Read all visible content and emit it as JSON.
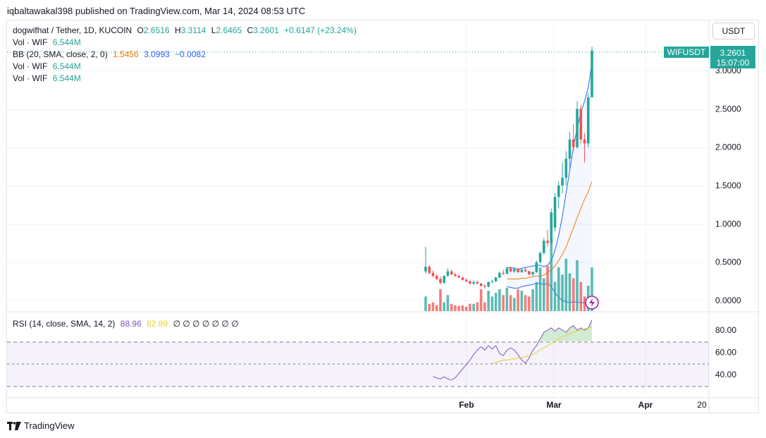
{
  "header": {
    "publisher_line": "iqbaltawakal398 published on TradingView.com, Mar 14, 2024 08:53 UTC"
  },
  "legend": {
    "symbol": "dogwifhat / Tether, 1D, KUCOIN",
    "o_label": "O",
    "o": "2.6516",
    "h_label": "H",
    "h": "3.3114",
    "l_label": "L",
    "l": "2.6465",
    "c_label": "C",
    "c": "3.2601",
    "change": "+0.6147 (+23.24%)",
    "vol1_label": "Vol · WIF",
    "vol1": "6.544M",
    "bb_label": "BB (20, SMA, close, 2, 0)",
    "bb_basis": "1.5456",
    "bb_upper": "3.0993",
    "bb_lower": "−0.0082",
    "vol2_label": "Vol · WIF",
    "vol2": "6.544M",
    "vol3_label": "Vol · WIF",
    "vol3": "6.544M",
    "rsi_label": "RSI (14, close, SMA, 14, 2)",
    "rsi": "88.96",
    "rsi_ma": "82.89",
    "na_values": "∅ ∅ ∅ ∅ ∅ ∅ ∅"
  },
  "currency_button": "USDT",
  "price_tag": {
    "symbol": "WIFUSDT",
    "price": "3.2601",
    "countdown": "15:07:00"
  },
  "footer": {
    "brand": "TradingView"
  },
  "colors": {
    "up": "#26a69a",
    "down": "#ef5350",
    "bb_band": "#2962ff",
    "bb_basis": "#f57c00",
    "rsi": "#7e57c2",
    "rsi_ma": "#e4d02f"
  },
  "chart_data": {
    "type": "candlestick",
    "price_axis": {
      "ticks": [
        "3.0000",
        "2.5000",
        "2.0000",
        "1.5000",
        "1.0000",
        "0.5000",
        "0.0000"
      ],
      "tick_values": [
        3.0,
        2.5,
        2.0,
        1.5,
        1.0,
        0.5,
        0.0
      ],
      "ylim": [
        -0.1,
        3.6
      ]
    },
    "rsi_axis": {
      "ticks": [
        "80.00",
        "60.00",
        "40.00"
      ],
      "tick_values": [
        80,
        60,
        40
      ],
      "bands": [
        70,
        50,
        30
      ]
    },
    "time_axis": {
      "labels": [
        "Feb",
        "Mar",
        "Apr",
        "20"
      ]
    },
    "candles": [
      [
        0.38,
        0.7,
        0.35,
        0.44
      ],
      [
        0.44,
        0.46,
        0.34,
        0.36
      ],
      [
        0.36,
        0.39,
        0.3,
        0.32
      ],
      [
        0.32,
        0.34,
        0.27,
        0.28
      ],
      [
        0.28,
        0.31,
        0.21,
        0.23
      ],
      [
        0.23,
        0.33,
        0.22,
        0.32
      ],
      [
        0.32,
        0.42,
        0.31,
        0.38
      ],
      [
        0.38,
        0.4,
        0.33,
        0.34
      ],
      [
        0.34,
        0.36,
        0.31,
        0.32
      ],
      [
        0.32,
        0.34,
        0.29,
        0.3
      ],
      [
        0.3,
        0.31,
        0.26,
        0.27
      ],
      [
        0.27,
        0.29,
        0.24,
        0.25
      ],
      [
        0.25,
        0.27,
        0.21,
        0.22
      ],
      [
        0.22,
        0.26,
        0.2,
        0.24
      ],
      [
        0.24,
        0.26,
        0.21,
        0.22
      ],
      [
        0.22,
        0.23,
        0.18,
        0.19
      ],
      [
        0.19,
        0.21,
        0.16,
        0.18
      ],
      [
        0.18,
        0.25,
        0.17,
        0.24
      ],
      [
        0.24,
        0.27,
        0.22,
        0.25
      ],
      [
        0.25,
        0.31,
        0.24,
        0.3
      ],
      [
        0.3,
        0.38,
        0.29,
        0.36
      ],
      [
        0.36,
        0.4,
        0.33,
        0.35
      ],
      [
        0.35,
        0.44,
        0.34,
        0.42
      ],
      [
        0.42,
        0.44,
        0.37,
        0.38
      ],
      [
        0.38,
        0.43,
        0.36,
        0.41
      ],
      [
        0.41,
        0.42,
        0.36,
        0.37
      ],
      [
        0.37,
        0.42,
        0.36,
        0.4
      ],
      [
        0.4,
        0.44,
        0.37,
        0.38
      ],
      [
        0.38,
        0.39,
        0.33,
        0.34
      ],
      [
        0.34,
        0.38,
        0.32,
        0.37
      ],
      [
        0.37,
        0.52,
        0.36,
        0.5
      ],
      [
        0.5,
        0.64,
        0.48,
        0.62
      ],
      [
        0.62,
        0.82,
        0.6,
        0.78
      ],
      [
        0.78,
        0.92,
        0.7,
        0.75
      ],
      [
        0.75,
        1.2,
        0.73,
        1.15
      ],
      [
        0.95,
        1.4,
        0.9,
        1.35
      ],
      [
        1.35,
        1.55,
        1.2,
        1.5
      ],
      [
        1.5,
        1.8,
        1.4,
        1.6
      ],
      [
        1.6,
        1.95,
        1.5,
        1.85
      ],
      [
        1.85,
        2.2,
        1.7,
        2.1
      ],
      [
        2.1,
        2.3,
        1.95,
        2.0
      ],
      [
        2.0,
        2.6,
        1.98,
        2.5
      ],
      [
        2.5,
        2.55,
        2.05,
        2.1
      ],
      [
        2.1,
        2.18,
        1.8,
        2.05
      ],
      [
        2.05,
        2.7,
        2.0,
        2.65
      ],
      [
        2.6516,
        3.3114,
        2.6465,
        3.2601
      ]
    ],
    "volume_relative": [
      0.2,
      0.1,
      0.12,
      0.08,
      0.3,
      0.12,
      0.22,
      0.1,
      0.08,
      0.07,
      0.08,
      0.06,
      0.1,
      0.1,
      0.12,
      0.3,
      0.12,
      0.28,
      0.2,
      0.25,
      0.3,
      0.22,
      0.32,
      0.22,
      0.18,
      0.3,
      0.28,
      0.22,
      0.2,
      0.3,
      0.4,
      0.6,
      0.45,
      0.62,
      1.0,
      0.4,
      0.6,
      0.5,
      0.72,
      0.52,
      0.45,
      0.7,
      0.4,
      0.2,
      0.35,
      0.6
    ],
    "bb_upper": [
      0.43,
      0.43,
      0.42,
      0.41,
      0.42,
      0.43,
      0.44,
      0.45,
      0.46,
      0.46,
      0.44,
      0.46,
      0.52,
      0.65,
      0.85,
      1.1,
      1.4,
      1.7,
      2.0,
      2.25,
      2.45,
      2.6,
      2.78,
      3.1
    ],
    "bb_basis": [
      0.28,
      0.28,
      0.28,
      0.28,
      0.29,
      0.29,
      0.3,
      0.31,
      0.32,
      0.32,
      0.33,
      0.36,
      0.4,
      0.45,
      0.52,
      0.6,
      0.7,
      0.82,
      0.95,
      1.08,
      1.2,
      1.32,
      1.42,
      1.55
    ],
    "bb_lower": [
      0.18,
      0.17,
      0.16,
      0.16,
      0.18,
      0.19,
      0.2,
      0.21,
      0.22,
      0.22,
      0.21,
      0.22,
      0.18,
      0.1,
      0.04,
      0.0,
      -0.02,
      -0.03,
      -0.02,
      -0.02,
      -0.03,
      -0.03,
      -0.03,
      -0.01
    ],
    "rsi": [
      38,
      37,
      36,
      38,
      36,
      35,
      37,
      41,
      45,
      49,
      53,
      58,
      62,
      65,
      62,
      66,
      63,
      66,
      59,
      57,
      62,
      64,
      62,
      58,
      53,
      50,
      55,
      62,
      66,
      72,
      78,
      80,
      82,
      79,
      82,
      80,
      78,
      82,
      84,
      80,
      82,
      80,
      82,
      89
    ],
    "rsi_ma": [
      50,
      51,
      52,
      53,
      53,
      54,
      54,
      55,
      55,
      56,
      57,
      58,
      60,
      62,
      64,
      66,
      68,
      70,
      72,
      74,
      75,
      77,
      78,
      79,
      80,
      81,
      82,
      83
    ]
  }
}
